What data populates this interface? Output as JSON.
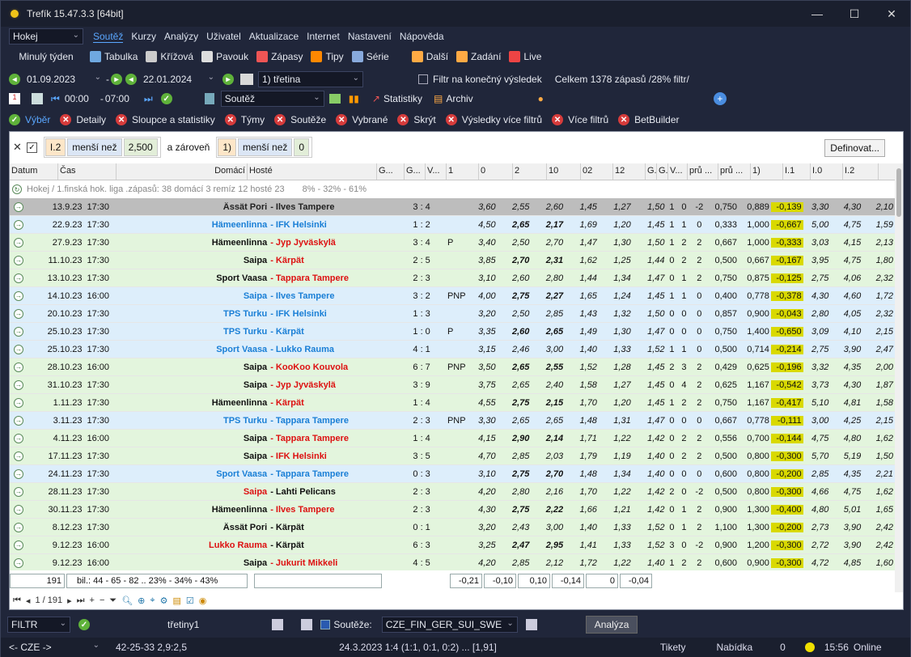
{
  "window": {
    "title": "Trefík 15.47.3.3 [64bit]"
  },
  "sport": "Hokej",
  "menu": [
    "Soutěž",
    "Kurzy",
    "Analýzy",
    "Uživatel",
    "Aktualizace",
    "Internet",
    "Nastavení",
    "Nápověda"
  ],
  "period": "Minulý týden",
  "toolbar": [
    "Tabulka",
    "Křížová",
    "Pavouk",
    "Zápasy",
    "Tipy",
    "Série",
    "Další",
    "Zadání",
    "Live"
  ],
  "date_from": "01.09.2023",
  "date_to": "22.01.2024",
  "period_select": "1) třetina",
  "filter_result_label": "Filtr na konečný výsledek",
  "summary_count": "Celkem 1378 zápasů /28% filtr/",
  "time_from": "00:00",
  "time_to": "07:00",
  "competition_select": "Soutěž",
  "stats_label": "Statistiky",
  "archive_label": "Archiv",
  "tabs": [
    "Výběr",
    "Detaily",
    "Sloupce a statistiky",
    "Týmy",
    "Soutěže",
    "Vybrané",
    "Skrýt",
    "Výsledky více filtrů",
    "Více filtrů",
    "BetBuilder"
  ],
  "filter": {
    "chip1": "I.2",
    "op1": "menší než",
    "val1": "2,500",
    "join": "a zároveň",
    "chip2": "1)",
    "op2": "menší než",
    "val2": "0",
    "define": "Definovat..."
  },
  "columns": [
    "Datum",
    "Čas",
    "Domácí",
    "Hosté",
    "G...",
    "G...",
    "V...",
    "1",
    "0",
    "2",
    "10",
    "02",
    "12",
    "G..",
    "G..",
    "V...",
    "prů ...",
    "prů ...",
    "1)",
    "I.1",
    "I.0",
    "I.2"
  ],
  "group": {
    "label": "Hokej / 1.finská hok. liga .zápasů: 38  domácí 3  remíz 12  hosté 23",
    "pct": "8% - 32% - 61%"
  },
  "rows": [
    [
      "13.9.23",
      "17:30",
      "Ässät Pori",
      "Ilves Tampere",
      "3 : 4",
      "",
      "3,60",
      "2,55",
      "2,60",
      "1,45",
      "1,27",
      "1,50",
      "1",
      "0",
      "-2",
      "0,750",
      "0,889",
      "-0,139",
      "3,30",
      "4,30",
      "2,10",
      "grey",
      "#222",
      "#222"
    ],
    [
      "22.9.23",
      "17:30",
      "Hämeenlinna",
      "IFK Helsinki",
      "1 : 2",
      "",
      "4,50",
      "2,65",
      "2,17",
      "1,69",
      "1,20",
      "1,45",
      "1",
      "1",
      "0",
      "0,333",
      "1,000",
      "-0,667",
      "5,00",
      "4,75",
      "1,59",
      "blue",
      "#1a7fd6",
      "#1a7fd6"
    ],
    [
      "27.9.23",
      "17:30",
      "Hämeenlinna",
      "Jyp Jyväskylä",
      "3 : 4",
      "P",
      "3,40",
      "2,50",
      "2,70",
      "1,47",
      "1,30",
      "1,50",
      "1",
      "2",
      "2",
      "0,667",
      "1,000",
      "-0,333",
      "3,03",
      "4,15",
      "2,13",
      "green",
      "#111",
      "#d11"
    ],
    [
      "11.10.23",
      "17:30",
      "Saipa",
      "Kärpät",
      "2 : 5",
      "",
      "3,85",
      "2,70",
      "2,31",
      "1,62",
      "1,25",
      "1,44",
      "0",
      "2",
      "2",
      "0,500",
      "0,667",
      "-0,167",
      "3,95",
      "4,75",
      "1,80",
      "green",
      "#111",
      "#d11"
    ],
    [
      "13.10.23",
      "17:30",
      "Sport Vaasa",
      "Tappara Tampere",
      "2 : 3",
      "",
      "3,10",
      "2,60",
      "2,80",
      "1,44",
      "1,34",
      "1,47",
      "0",
      "1",
      "2",
      "0,750",
      "0,875",
      "-0,125",
      "2,75",
      "4,06",
      "2,32",
      "green",
      "#111",
      "#d11"
    ],
    [
      "14.10.23",
      "16:00",
      "Saipa",
      "Ilves Tampere",
      "3 : 2",
      "PNP",
      "4,00",
      "2,75",
      "2,27",
      "1,65",
      "1,24",
      "1,45",
      "1",
      "1",
      "0",
      "0,400",
      "0,778",
      "-0,378",
      "4,30",
      "4,60",
      "1,72",
      "blue",
      "#1a7fd6",
      "#1a7fd6"
    ],
    [
      "20.10.23",
      "17:30",
      "TPS Turku",
      "IFK Helsinki",
      "1 : 3",
      "",
      "3,20",
      "2,50",
      "2,85",
      "1,43",
      "1,32",
      "1,50",
      "0",
      "0",
      "0",
      "0,857",
      "0,900",
      "-0,043",
      "2,80",
      "4,05",
      "2,32",
      "blue",
      "#1a7fd6",
      "#1a7fd6"
    ],
    [
      "25.10.23",
      "17:30",
      "TPS Turku",
      "Kärpät",
      "1 : 0",
      "P",
      "3,35",
      "2,60",
      "2,65",
      "1,49",
      "1,30",
      "1,47",
      "0",
      "0",
      "0",
      "0,750",
      "1,400",
      "-0,650",
      "3,09",
      "4,10",
      "2,15",
      "blue",
      "#1a7fd6",
      "#1a7fd6"
    ],
    [
      "25.10.23",
      "17:30",
      "Sport Vaasa",
      "Lukko Rauma",
      "4 : 1",
      "",
      "3,15",
      "2,46",
      "3,00",
      "1,40",
      "1,33",
      "1,52",
      "1",
      "1",
      "0",
      "0,500",
      "0,714",
      "-0,214",
      "2,75",
      "3,90",
      "2,47",
      "blue",
      "#1a7fd6",
      "#1a7fd6"
    ],
    [
      "28.10.23",
      "16:00",
      "Saipa",
      "KooKoo Kouvola",
      "6 : 7",
      "PNP",
      "3,50",
      "2,65",
      "2,55",
      "1,52",
      "1,28",
      "1,45",
      "2",
      "3",
      "2",
      "0,429",
      "0,625",
      "-0,196",
      "3,32",
      "4,35",
      "2,00",
      "green",
      "#111",
      "#d11"
    ],
    [
      "31.10.23",
      "17:30",
      "Saipa",
      "Jyp Jyväskylä",
      "3 : 9",
      "",
      "3,75",
      "2,65",
      "2,40",
      "1,58",
      "1,27",
      "1,45",
      "0",
      "4",
      "2",
      "0,625",
      "1,167",
      "-0,542",
      "3,73",
      "4,30",
      "1,87",
      "green",
      "#111",
      "#d11"
    ],
    [
      "1.11.23",
      "17:30",
      "Hämeenlinna",
      "Kärpät",
      "1 : 4",
      "",
      "4,55",
      "2,75",
      "2,15",
      "1,70",
      "1,20",
      "1,45",
      "1",
      "2",
      "2",
      "0,750",
      "1,167",
      "-0,417",
      "5,10",
      "4,81",
      "1,58",
      "green",
      "#111",
      "#d11"
    ],
    [
      "3.11.23",
      "17:30",
      "TPS Turku",
      "Tappara Tampere",
      "2 : 3",
      "PNP",
      "3,30",
      "2,65",
      "2,65",
      "1,48",
      "1,31",
      "1,47",
      "0",
      "0",
      "0",
      "0,667",
      "0,778",
      "-0,111",
      "3,00",
      "4,25",
      "2,15",
      "blue",
      "#1a7fd6",
      "#1a7fd6"
    ],
    [
      "4.11.23",
      "16:00",
      "Saipa",
      "Tappara Tampere",
      "1 : 4",
      "",
      "4,15",
      "2,90",
      "2,14",
      "1,71",
      "1,22",
      "1,42",
      "0",
      "2",
      "2",
      "0,556",
      "0,700",
      "-0,144",
      "4,75",
      "4,80",
      "1,62",
      "green",
      "#111",
      "#d11"
    ],
    [
      "17.11.23",
      "17:30",
      "Saipa",
      "IFK Helsinki",
      "3 : 5",
      "",
      "4,70",
      "2,85",
      "2,03",
      "1,79",
      "1,19",
      "1,40",
      "0",
      "2",
      "2",
      "0,500",
      "0,800",
      "-0,300",
      "5,70",
      "5,19",
      "1,50",
      "green",
      "#111",
      "#d11"
    ],
    [
      "24.11.23",
      "17:30",
      "Sport Vaasa",
      "Tappara Tampere",
      "0 : 3",
      "",
      "3,10",
      "2,75",
      "2,70",
      "1,48",
      "1,34",
      "1,40",
      "0",
      "0",
      "0",
      "0,600",
      "0,800",
      "-0,200",
      "2,85",
      "4,35",
      "2,21",
      "blue",
      "#1a7fd6",
      "#1a7fd6"
    ],
    [
      "28.11.23",
      "17:30",
      "Saipa",
      "Lahti Pelicans",
      "2 : 3",
      "",
      "4,20",
      "2,80",
      "2,16",
      "1,70",
      "1,22",
      "1,42",
      "2",
      "0",
      "-2",
      "0,500",
      "0,800",
      "-0,300",
      "4,66",
      "4,75",
      "1,62",
      "green",
      "#d11",
      "#111"
    ],
    [
      "30.11.23",
      "17:30",
      "Hämeenlinna",
      "Ilves Tampere",
      "2 : 3",
      "",
      "4,30",
      "2,75",
      "2,22",
      "1,66",
      "1,21",
      "1,42",
      "0",
      "1",
      "2",
      "0,900",
      "1,300",
      "-0,400",
      "4,80",
      "5,01",
      "1,65",
      "green",
      "#111",
      "#d11"
    ],
    [
      "8.12.23",
      "17:30",
      "Ässät Pori",
      "Kärpät",
      "0 : 1",
      "",
      "3,20",
      "2,43",
      "3,00",
      "1,40",
      "1,33",
      "1,52",
      "0",
      "1",
      "2",
      "1,100",
      "1,300",
      "-0,200",
      "2,73",
      "3,90",
      "2,42",
      "green",
      "#111",
      "#111"
    ],
    [
      "9.12.23",
      "16:00",
      "Lukko Rauma",
      "Kärpät",
      "6 : 3",
      "",
      "3,25",
      "2,47",
      "2,95",
      "1,41",
      "1,33",
      "1,52",
      "3",
      "0",
      "-2",
      "0,900",
      "1,200",
      "-0,300",
      "2,72",
      "3,90",
      "2,42",
      "green",
      "#d11",
      "#111"
    ],
    [
      "9.12.23",
      "16:00",
      "Saipa",
      "Jukurit Mikkeli",
      "4 : 5",
      "",
      "4,20",
      "2,85",
      "2,12",
      "1,72",
      "1,22",
      "1,40",
      "1",
      "2",
      "2",
      "0,600",
      "0,900",
      "-0,300",
      "4,72",
      "4,85",
      "1,60",
      "green",
      "#111",
      "#d11"
    ]
  ],
  "summary": {
    "count": "191",
    "bil": "bil.: 44 - 65 - 82 .. 23% - 34% - 43%",
    "v1": "-0,21",
    "v2": "-0,10",
    "v3": "0,10",
    "v4": "-0,14",
    "v5": "0",
    "v6": "-0,04"
  },
  "pager": "1 / 191",
  "bottom": {
    "filtr": "FILTR",
    "period": "třetiny1",
    "soutez_label": "Soutěže:",
    "soutez_val": "CZE_FIN_GER_SUI_SWE",
    "analyza": "Analýza"
  },
  "status": {
    "country": "<- CZE ->",
    "stat": "42-25-33  2,9:2,5",
    "match": "24.3.2023 1:4 (1:1, 0:1, 0:2) ... [1,91]",
    "tikety": "Tikety",
    "nabidka": "Nabídka",
    "count": "0",
    "time": "15:56",
    "online": "Online"
  }
}
